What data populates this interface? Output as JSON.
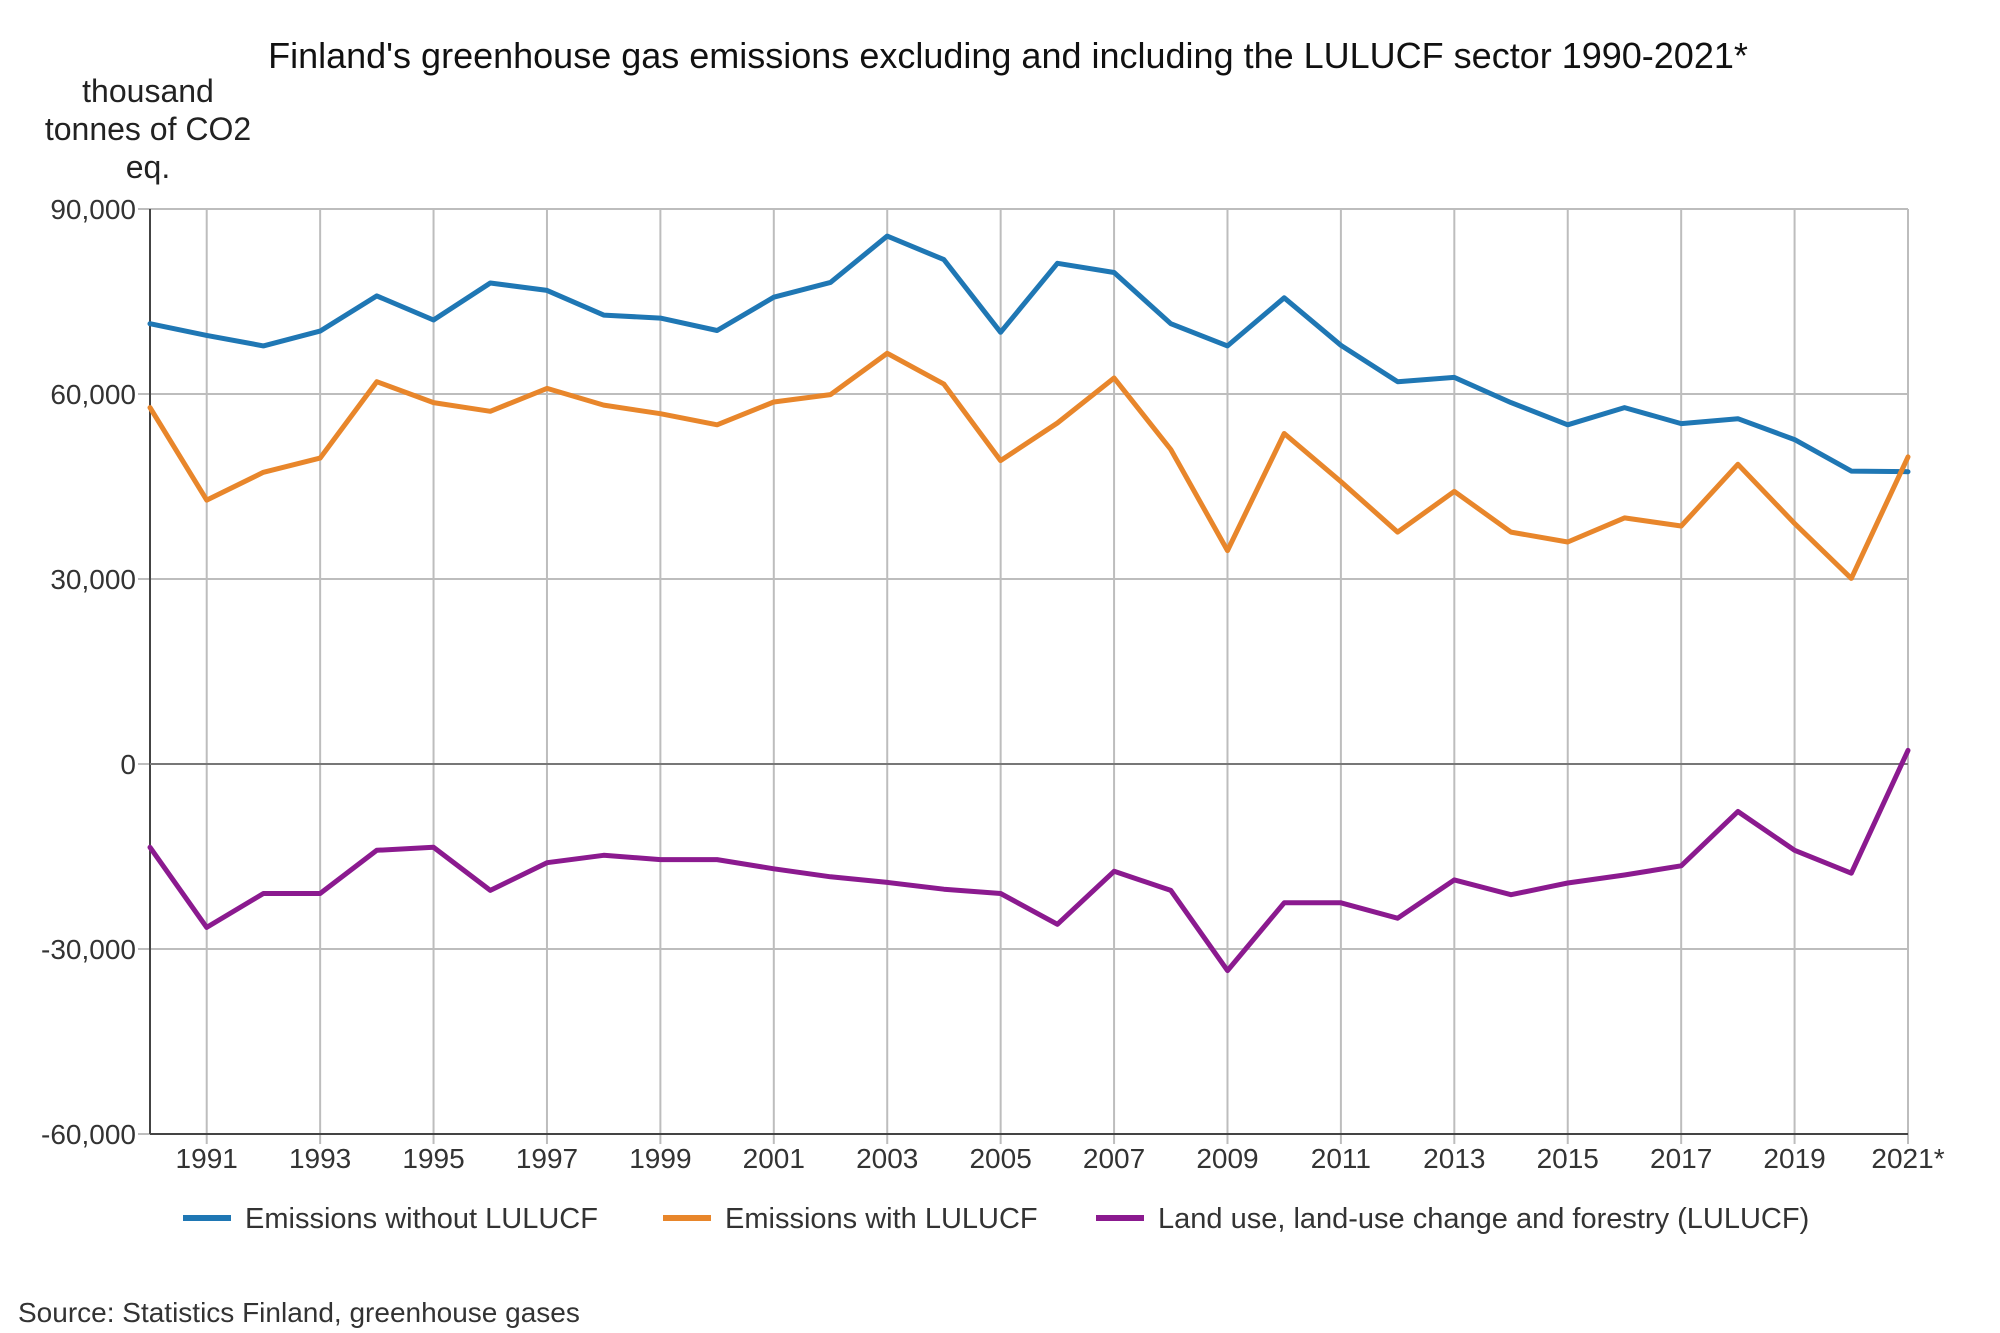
{
  "chart_data": {
    "type": "line",
    "title": "Finland's greenhouse gas emissions excluding and including the LULUCF sector 1990-2021*",
    "ylabel": [
      "thousand",
      "tonnes of CO2",
      "eq."
    ],
    "xlabel": "",
    "ylim": [
      -60000,
      90000
    ],
    "yticks": [
      90000,
      60000,
      30000,
      0,
      -30000,
      -60000
    ],
    "ytick_labels": [
      "90,000",
      "60,000",
      "30,000",
      "0",
      "-30,000",
      "-60,000"
    ],
    "x": [
      1990,
      1991,
      1992,
      1993,
      1994,
      1995,
      1996,
      1997,
      1998,
      1999,
      2000,
      2001,
      2002,
      2003,
      2004,
      2005,
      2006,
      2007,
      2008,
      2009,
      2010,
      2011,
      2012,
      2013,
      2014,
      2015,
      2016,
      2017,
      2018,
      2019,
      2020,
      2021
    ],
    "xticks": [
      1991,
      1993,
      1995,
      1997,
      1999,
      2001,
      2003,
      2005,
      2007,
      2009,
      2011,
      2013,
      2015,
      2017,
      2019,
      2021
    ],
    "xtick_labels": [
      "1991",
      "1993",
      "1995",
      "1997",
      "1999",
      "2001",
      "2003",
      "2005",
      "2007",
      "2009",
      "2011",
      "2013",
      "2015",
      "2017",
      "2019",
      "2021*"
    ],
    "grid": true,
    "legend_position": "bottom",
    "series": [
      {
        "name": "Emissions without LULUCF",
        "color": "#1f77b4",
        "values": [
          71400,
          69500,
          67800,
          70200,
          75900,
          72000,
          78000,
          76800,
          72800,
          72300,
          70300,
          75700,
          78100,
          85600,
          81800,
          70000,
          81200,
          79700,
          71400,
          67800,
          75600,
          67900,
          62000,
          62700,
          58600,
          55000,
          57800,
          55200,
          56000,
          52600,
          47500,
          47400
        ]
      },
      {
        "name": "Emissions with LULUCF",
        "color": "#e8862b",
        "values": [
          57800,
          42800,
          47300,
          49600,
          62000,
          58600,
          57200,
          60900,
          58200,
          56800,
          55000,
          58700,
          59900,
          66600,
          61600,
          49200,
          55300,
          62600,
          51000,
          34600,
          53600,
          45800,
          37600,
          44200,
          37600,
          36000,
          39900,
          38600,
          48600,
          39000,
          30100,
          49800
        ]
      },
      {
        "name": "Land use, land-use change and forestry (LULUCF)",
        "color": "#8b1a8f",
        "values": [
          -13500,
          -26500,
          -21000,
          -21000,
          -14000,
          -13500,
          -20500,
          -16000,
          -14800,
          -15500,
          -15500,
          -17000,
          -18300,
          -19200,
          -20300,
          -21000,
          -26000,
          -17400,
          -20500,
          -33500,
          -22500,
          -22500,
          -25000,
          -18800,
          -21200,
          -19300,
          -18000,
          -16500,
          -7700,
          -14000,
          -17700,
          2200
        ]
      }
    ],
    "source": "Source: Statistics Finland, greenhouse gases"
  }
}
